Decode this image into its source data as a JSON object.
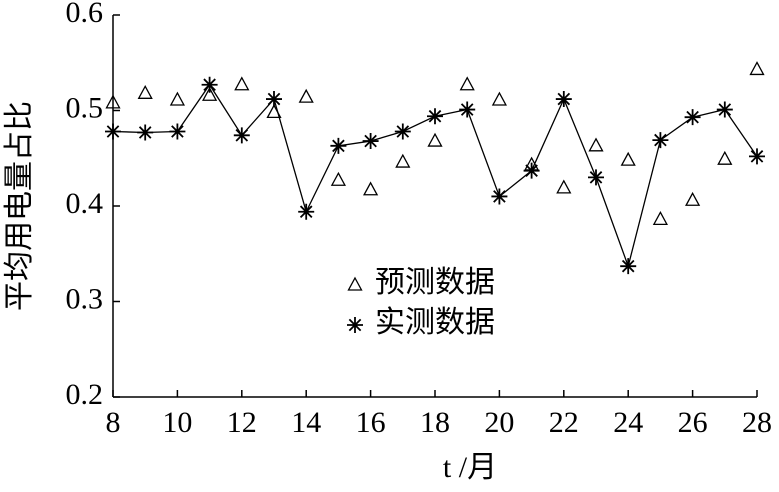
{
  "chart_data": {
    "type": "line",
    "ylabel": "平均用电量占比",
    "xlabel": "t /月",
    "x": [
      8,
      9,
      10,
      11,
      12,
      13,
      14,
      15,
      16,
      17,
      18,
      19,
      20,
      21,
      22,
      23,
      24,
      25,
      26,
      27,
      28
    ],
    "series": [
      {
        "name": "预测数据",
        "color": "#000000",
        "marker": "triangle",
        "line": false,
        "values": [
          0.508,
          0.518,
          0.511,
          0.516,
          0.527,
          0.498,
          0.514,
          0.427,
          0.417,
          0.446,
          0.468,
          0.527,
          0.511,
          0.443,
          0.419,
          0.463,
          0.448,
          0.386,
          0.406,
          0.449,
          0.543
        ]
      },
      {
        "name": "实测数据",
        "color": "#000000",
        "marker": "star",
        "line": true,
        "values": [
          0.478,
          0.477,
          0.478,
          0.527,
          0.474,
          0.512,
          0.394,
          0.463,
          0.468,
          0.478,
          0.494,
          0.501,
          0.41,
          0.437,
          0.512,
          0.43,
          0.337,
          0.469,
          0.493,
          0.501,
          0.452
        ]
      }
    ],
    "xlim": [
      8,
      28
    ],
    "xticks": [
      8,
      10,
      12,
      14,
      16,
      18,
      20,
      22,
      24,
      26,
      28
    ],
    "ylim": [
      0.2,
      0.6
    ],
    "yticks": [
      0.2,
      0.3,
      0.4,
      0.5,
      0.6
    ],
    "grid": false,
    "legend": "center"
  }
}
